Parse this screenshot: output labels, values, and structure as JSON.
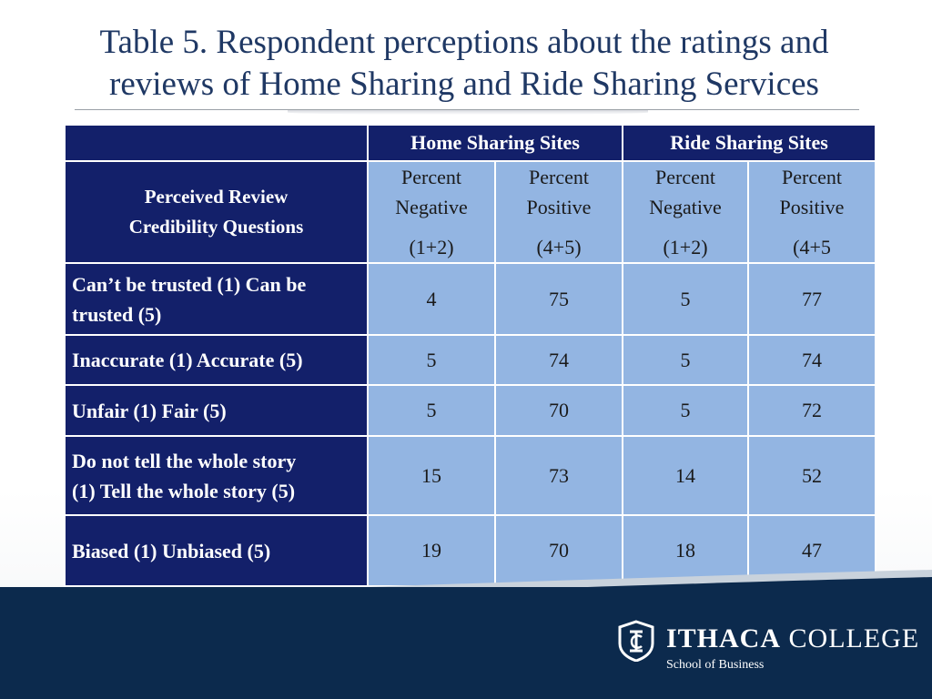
{
  "slide": {
    "title_line1": "Table 5. Respondent perceptions about the ratings and",
    "title_line2": "reviews of Home Sharing and Ride Sharing Services"
  },
  "table": {
    "group_headers": [
      "Home Sharing Sites",
      "Ride Sharing Sites"
    ],
    "corner_label_line1": "Perceived Review",
    "corner_label_line2": "Credibility Questions",
    "subheaders": [
      {
        "word1": "Percent",
        "word2": "Negative",
        "range": "(1+2)"
      },
      {
        "word1": "Percent",
        "word2": "Positive",
        "range": "(4+5)"
      },
      {
        "word1": "Percent",
        "word2": "Negative",
        "range": "(1+2)"
      },
      {
        "word1": "Percent",
        "word2": "Positive",
        "range": "(4+5"
      }
    ],
    "rows": [
      {
        "label_line1": "Can’t be trusted (1) Can be",
        "label_line2": "trusted (5)",
        "values": [
          "4",
          "75",
          "5",
          "77"
        ]
      },
      {
        "label_line1": "Inaccurate (1) Accurate (5)",
        "label_line2": "",
        "values": [
          "5",
          "74",
          "5",
          "74"
        ]
      },
      {
        "label_line1": "Unfair (1) Fair (5)",
        "label_line2": "",
        "values": [
          "5",
          "70",
          "5",
          "72"
        ]
      },
      {
        "label_line1": "Do not tell the whole story",
        "label_line2": "(1) Tell the whole story (5)",
        "values": [
          "15",
          "73",
          "14",
          "52"
        ]
      },
      {
        "label_line1": "Biased (1) Unbiased (5)",
        "label_line2": "",
        "values": [
          "19",
          "70",
          "18",
          "47"
        ]
      }
    ]
  },
  "footer": {
    "logo_icon": "ithaca-college-emblem-icon",
    "brand_bold": "ITHACA",
    "brand_regular": "COLLEGE",
    "school": "School of Business"
  },
  "colors": {
    "title": "#1f3864",
    "header_fill": "#13206a",
    "cell_fill": "#93b5e2",
    "footer_fill": "#0c2a4d"
  }
}
